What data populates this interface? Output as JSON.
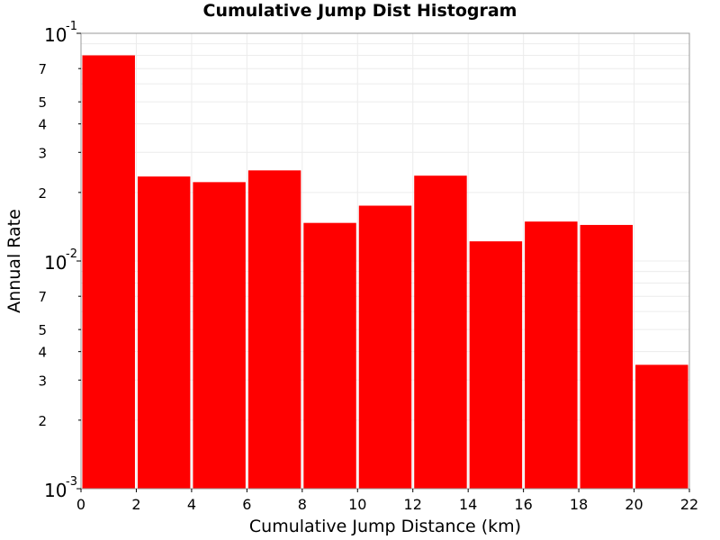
{
  "chart_data": {
    "type": "bar",
    "title": "Cumulative Jump Dist Histogram",
    "xlabel": "Cumulative Jump Distance (km)",
    "ylabel": "Annual Rate",
    "y_scale": "log",
    "xlim": [
      0,
      22
    ],
    "ylim": [
      0.001,
      0.1
    ],
    "grid": true,
    "bar_color": "#ff0000",
    "x_ticks": [
      "0",
      "2",
      "4",
      "6",
      "8",
      "10",
      "12",
      "14",
      "16",
      "18",
      "20",
      "22"
    ],
    "y_major_ticks": [
      {
        "value": 0.1,
        "base": "10",
        "exp": "-1"
      },
      {
        "value": 0.01,
        "base": "10",
        "exp": "-2"
      },
      {
        "value": 0.001,
        "base": "10",
        "exp": "-3"
      }
    ],
    "y_minor_labels": [
      {
        "value": 0.07,
        "label": "7"
      },
      {
        "value": 0.05,
        "label": "5"
      },
      {
        "value": 0.04,
        "label": "4"
      },
      {
        "value": 0.03,
        "label": "3"
      },
      {
        "value": 0.02,
        "label": "2"
      },
      {
        "value": 0.007,
        "label": "7"
      },
      {
        "value": 0.005,
        "label": "5"
      },
      {
        "value": 0.004,
        "label": "4"
      },
      {
        "value": 0.003,
        "label": "3"
      },
      {
        "value": 0.002,
        "label": "2"
      }
    ],
    "bins": [
      {
        "x0": 0,
        "x1": 2,
        "value": 0.08
      },
      {
        "x0": 2,
        "x1": 4,
        "value": 0.0235
      },
      {
        "x0": 4,
        "x1": 6,
        "value": 0.0222
      },
      {
        "x0": 6,
        "x1": 8,
        "value": 0.025
      },
      {
        "x0": 8,
        "x1": 10,
        "value": 0.0147
      },
      {
        "x0": 10,
        "x1": 12,
        "value": 0.0175
      },
      {
        "x0": 12,
        "x1": 14,
        "value": 0.0237
      },
      {
        "x0": 14,
        "x1": 16,
        "value": 0.0122
      },
      {
        "x0": 16,
        "x1": 18,
        "value": 0.0149
      },
      {
        "x0": 18,
        "x1": 20,
        "value": 0.0144
      },
      {
        "x0": 20,
        "x1": 22,
        "value": 0.0035
      }
    ]
  }
}
